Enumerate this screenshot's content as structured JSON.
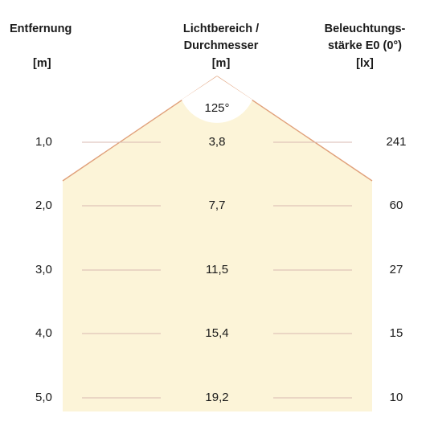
{
  "headers": {
    "distance_title": "Entfernung",
    "distance_unit": "[m]",
    "diameter_title_line1": "Lichtbereich /",
    "diameter_title_line2": "Durchmesser",
    "diameter_unit": "[m]",
    "illuminance_title_line1": "Beleuchtungs-",
    "illuminance_title_line2": "stärke E0 (0°)",
    "illuminance_unit": "[lx]"
  },
  "beam_angle": "125°",
  "colors": {
    "cone_fill": "#fcf4d8",
    "cone_edge": "#e0a07a",
    "guide_line": "#d8b8b0"
  },
  "rows": [
    {
      "distance": "1,0",
      "diameter": "3,8",
      "illuminance": "241"
    },
    {
      "distance": "2,0",
      "diameter": "7,7",
      "illuminance": "60"
    },
    {
      "distance": "3,0",
      "diameter": "11,5",
      "illuminance": "27"
    },
    {
      "distance": "4,0",
      "diameter": "15,4",
      "illuminance": "15"
    },
    {
      "distance": "5,0",
      "diameter": "19,2",
      "illuminance": "10"
    }
  ]
}
